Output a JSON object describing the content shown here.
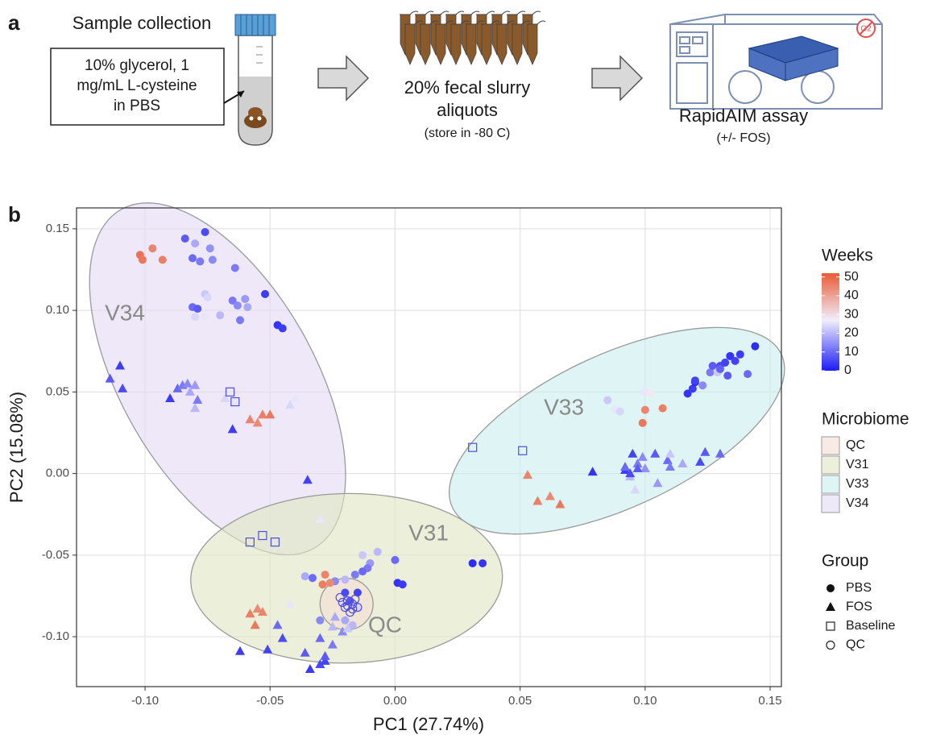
{
  "panel_a": {
    "label": "a",
    "sample_title": "Sample collection",
    "buffer_lines": [
      "10% glycerol, 1",
      "mg/mL L-cysteine",
      "in PBS"
    ],
    "slurry_lines": [
      "20% fecal slurry",
      "aliquots"
    ],
    "slurry_note": "(store in -80 C)",
    "assay_title": "RapidAIM assay",
    "assay_note": "(+/- FOS)",
    "icon_text": "O2"
  },
  "chart_data": {
    "type": "scatter",
    "panel_label": "b",
    "x_label": "PC1 (27.74%)",
    "y_label": "PC2 (15.08%)",
    "xlim": [
      -0.1274,
      0.1545
    ],
    "ylim": [
      -0.1306,
      0.1628
    ],
    "xticks": [
      {
        "value": -0.1,
        "label": "-0.10"
      },
      -0.05,
      {
        "value": 0,
        "label": "0.00"
      },
      0.05,
      {
        "value": 0.1,
        "label": "0.10"
      },
      0.15
    ],
    "yticks": [
      {
        "value": -0.1,
        "label": "-0.10"
      },
      -0.05,
      {
        "value": 0,
        "label": "0.00"
      },
      0.05,
      {
        "value": 0.1,
        "label": "0.10"
      },
      0.15
    ],
    "grid": true,
    "color_scale": {
      "title": "Weeks",
      "lim": [
        0,
        52
      ],
      "ticks": [
        0,
        10,
        20,
        30,
        40,
        50
      ],
      "stops": [
        {
          "value": 0,
          "color": "#1c1cf5"
        },
        {
          "value": 27,
          "color": "#f1eefa"
        },
        {
          "value": 52,
          "color": "#ea5a36"
        }
      ]
    },
    "ellipse_legend_title": "Microbiome",
    "ellipses": [
      {
        "name": "QC",
        "color": "#f3ddd6",
        "center": [
          -0.0194,
          -0.08
        ],
        "axis1": [
          0.0106,
          0
        ],
        "axis2": [
          0,
          -0.0158
        ]
      },
      {
        "name": "V31",
        "color": "#dfe6c2",
        "center": [
          -0.0194,
          -0.0642
        ],
        "axis1": [
          0.0623,
          0.0025
        ],
        "axis2": [
          0.0016,
          -0.0519
        ]
      },
      {
        "name": "V33",
        "color": "#c9ecec",
        "center": [
          0.0887,
          0.0262
        ],
        "axis1": [
          0.0658,
          0.0469
        ],
        "axis2": [
          0.0129,
          -0.0425
        ]
      },
      {
        "name": "V34",
        "color": "#e3d9f3",
        "center": [
          -0.071,
          0.058
        ],
        "axis1": [
          0.0387,
          -0.1037
        ],
        "axis2": [
          0.0335,
          0.0296
        ]
      }
    ],
    "group_legend_title": "Group",
    "series": [
      {
        "name": "PBS",
        "marker": "circle",
        "x": [
          -0.102,
          -0.097,
          -0.101,
          -0.093,
          -0.084,
          -0.076,
          -0.08,
          -0.074,
          -0.081,
          -0.078,
          -0.073,
          -0.064,
          -0.076,
          -0.075,
          -0.081,
          -0.079,
          -0.06,
          -0.065,
          -0.059,
          -0.052,
          -0.07,
          -0.08,
          -0.076,
          -0.063,
          -0.062,
          -0.047,
          -0.045,
          0.085,
          0.088,
          0.09,
          0.1,
          0.102,
          0.1,
          0.107,
          0.099,
          0.117,
          0.119,
          0.12,
          0.123,
          0.126,
          0.127,
          0.13,
          0.132,
          0.134,
          0.136,
          0.138,
          0.144,
          0.129,
          0.133,
          0.141,
          0.12,
          0.13,
          0.031,
          0.035,
          0.001,
          0.003,
          0,
          -0.007,
          -0.013,
          -0.01,
          -0.011,
          -0.013,
          -0.016,
          -0.02,
          -0.024,
          -0.028,
          -0.029,
          -0.026,
          -0.02,
          -0.015,
          -0.018,
          -0.036,
          -0.033,
          -0.02,
          -0.017,
          -0.03
        ],
        "y": [
          0.134,
          0.138,
          0.131,
          0.131,
          0.144,
          0.148,
          0.141,
          0.138,
          0.132,
          0.13,
          0.131,
          0.126,
          0.11,
          0.108,
          0.102,
          0.101,
          0.107,
          0.106,
          0.102,
          0.11,
          0.097,
          0.096,
          0.096,
          0.103,
          0.094,
          0.091,
          0.089,
          0.045,
          0.039,
          0.038,
          0.05,
          0.049,
          0.039,
          0.04,
          0.031,
          0.049,
          0.052,
          0.056,
          0.054,
          0.062,
          0.066,
          0.066,
          0.068,
          0.072,
          0.069,
          0.073,
          0.078,
          0.062,
          0.06,
          0.061,
          0.057,
          0.064,
          -0.055,
          -0.055,
          -0.067,
          -0.068,
          -0.053,
          -0.048,
          -0.05,
          -0.055,
          -0.058,
          -0.06,
          -0.062,
          -0.065,
          -0.066,
          -0.062,
          -0.068,
          -0.067,
          -0.073,
          -0.073,
          -0.078,
          -0.063,
          -0.064,
          -0.09,
          -0.093,
          -0.09
        ],
        "weeks": [
          48,
          45,
          47,
          46,
          8,
          6,
          18,
          15,
          10,
          12,
          14,
          12,
          22,
          24,
          10,
          8,
          16,
          12,
          18,
          4,
          20,
          24,
          26,
          14,
          12,
          3,
          4,
          22,
          26,
          24,
          26,
          28,
          45,
          46,
          47,
          3,
          4,
          2,
          14,
          12,
          8,
          6,
          5,
          3,
          5,
          4,
          2,
          22,
          8,
          10,
          5,
          9,
          2,
          3,
          3,
          4,
          10,
          20,
          22,
          16,
          12,
          10,
          12,
          20,
          14,
          45,
          46,
          44,
          6,
          5,
          8,
          18,
          10,
          18,
          20,
          14
        ]
      },
      {
        "name": "FOS",
        "marker": "triangle",
        "x": [
          -0.114,
          -0.11,
          -0.109,
          -0.09,
          -0.087,
          -0.085,
          -0.083,
          -0.08,
          -0.082,
          -0.079,
          -0.08,
          -0.068,
          -0.064,
          -0.059,
          -0.065,
          -0.058,
          -0.053,
          -0.055,
          -0.05,
          -0.042,
          -0.04,
          -0.035,
          -0.03,
          0.079,
          0.092,
          0.095,
          0.097,
          0.099,
          0.104,
          0.109,
          0.11,
          0.115,
          0.122,
          0.124,
          0.13,
          0.094,
          0.096,
          0.105,
          0.11,
          0.1,
          0.092,
          0.053,
          0.057,
          0.062,
          0.066,
          0.094,
          0.097,
          -0.058,
          -0.055,
          -0.053,
          -0.056,
          -0.047,
          -0.062,
          -0.051,
          -0.045,
          -0.036,
          -0.03,
          -0.03,
          -0.028,
          -0.034,
          -0.028,
          -0.025,
          -0.021,
          -0.024,
          -0.025,
          -0.019,
          -0.042,
          -0.015
        ],
        "y": [
          0.058,
          0.066,
          0.052,
          0.046,
          0.052,
          0.054,
          0.055,
          0.054,
          0.05,
          0.045,
          0.04,
          0.046,
          0.044,
          0.046,
          0.027,
          0.033,
          0.036,
          0.031,
          0.036,
          0.042,
          0.046,
          -0.004,
          -0.028,
          0.001,
          0.002,
          0.012,
          0.006,
          0.01,
          0.012,
          0.008,
          0.012,
          0.006,
          0.007,
          0.013,
          0.012,
          -0.002,
          -0.01,
          -0.006,
          0.004,
          0.003,
          0.004,
          -0.001,
          -0.017,
          -0.014,
          -0.019,
          0,
          0.003,
          -0.086,
          -0.083,
          -0.085,
          -0.093,
          -0.093,
          -0.109,
          -0.108,
          -0.101,
          -0.11,
          -0.101,
          -0.117,
          -0.115,
          -0.12,
          -0.112,
          -0.105,
          -0.097,
          -0.088,
          -0.094,
          -0.095,
          -0.08,
          -0.082
        ],
        "weeks": [
          8,
          4,
          6,
          4,
          10,
          12,
          14,
          16,
          18,
          12,
          20,
          24,
          26,
          28,
          4,
          45,
          46,
          44,
          47,
          24,
          26,
          5,
          26,
          3,
          4,
          5,
          12,
          14,
          8,
          10,
          22,
          18,
          6,
          8,
          10,
          20,
          24,
          16,
          12,
          15,
          10,
          45,
          46,
          44,
          47,
          6,
          8,
          46,
          44,
          45,
          47,
          10,
          4,
          5,
          6,
          8,
          10,
          6,
          5,
          4,
          8,
          12,
          14,
          18,
          20,
          22,
          26,
          24
        ]
      },
      {
        "name": "Baseline",
        "marker": "square",
        "color": "#4f4fd8",
        "x": [
          -0.066,
          -0.064,
          0.031,
          0.051,
          -0.058,
          -0.053,
          -0.048
        ],
        "y": [
          0.05,
          0.044,
          0.016,
          0.014,
          -0.042,
          -0.038,
          -0.042
        ]
      },
      {
        "name": "QC",
        "marker": "open-circle",
        "color": "#4f4fd8",
        "x": [
          -0.022,
          -0.019,
          -0.017,
          -0.015,
          -0.02,
          -0.018,
          -0.016,
          -0.021,
          -0.017,
          -0.019
        ],
        "y": [
          -0.076,
          -0.078,
          -0.08,
          -0.082,
          -0.082,
          -0.085,
          -0.077,
          -0.079,
          -0.083,
          -0.081
        ]
      }
    ]
  }
}
